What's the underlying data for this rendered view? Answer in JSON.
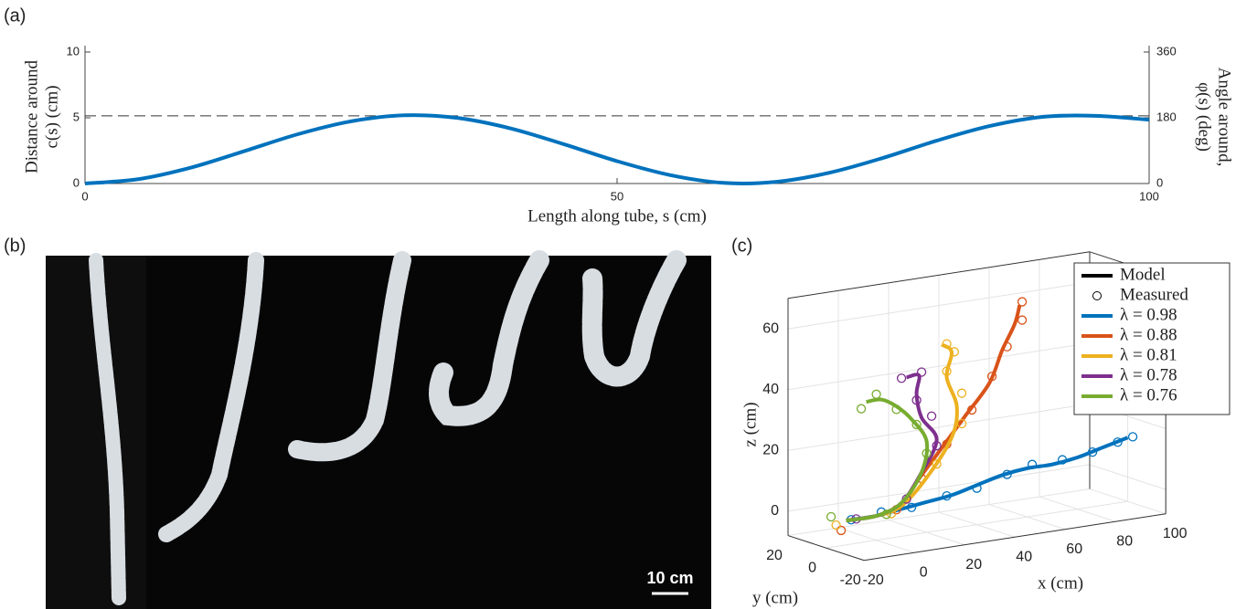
{
  "panel_labels": [
    "(a)",
    "(b)",
    "(c)"
  ],
  "photo": {
    "scale_bar_label": "10 cm"
  },
  "chart_data": [
    {
      "type": "line",
      "xlabel": "Length along tube, s (cm)",
      "ylabel": [
        "Distance around",
        "c(s) (cm)"
      ],
      "y2label": [
        "Angle around,",
        "φ(s) (deg)"
      ],
      "x": [
        0,
        5,
        10,
        15,
        20,
        25,
        30,
        35,
        40,
        45,
        50,
        55,
        60,
        65,
        70,
        75,
        80,
        85,
        90,
        95,
        100
      ],
      "values": [
        0,
        0.33,
        1.22,
        2.47,
        3.75,
        4.73,
        5.19,
        4.99,
        4.19,
        2.99,
        1.7,
        0.64,
        0.05,
        0.13,
        0.83,
        1.95,
        3.25,
        4.37,
        5.07,
        5.15,
        4.85
      ],
      "color": "#0072bd",
      "reference_line": 5.15,
      "xlim": [
        0,
        100
      ],
      "xticks": [
        0,
        50,
        100
      ],
      "ylim": [
        0,
        10
      ],
      "yticks": [
        0,
        5,
        10
      ],
      "y2lim": [
        0,
        360
      ],
      "y2ticks": [
        0,
        180,
        360
      ]
    },
    {
      "type": "line3d",
      "xlabel": "x (cm)",
      "ylabel": "y (cm)",
      "zlabel": "z (cm)",
      "xlim": [
        -20,
        100
      ],
      "xticks": [
        -20,
        0,
        20,
        40,
        60,
        80,
        100
      ],
      "ylim": [
        -20,
        20
      ],
      "yticks": [
        -20,
        0,
        20
      ],
      "zlim": [
        -8,
        70
      ],
      "zticks": [
        0,
        20,
        40,
        60
      ],
      "grid": true,
      "legend_styles": [
        "Model",
        "Measured"
      ],
      "series": [
        {
          "name": "λ = 0.98",
          "color": "#0072bd",
          "model": {
            "x": [
              -10,
              0,
              10,
              20,
              30,
              40,
              50,
              60,
              70,
              80,
              90,
              100
            ],
            "y": [
              0,
              0,
              0,
              0,
              0,
              0,
              0,
              0,
              0,
              0,
              0,
              0
            ],
            "z": [
              0,
              0,
              1,
              2,
              3,
              5,
              7,
              8,
              8,
              9,
              11,
              13
            ]
          },
          "measured": {
            "x": [
              -10,
              2,
              14,
              28,
              40,
              52,
              62,
              74,
              86,
              96,
              102
            ],
            "y": [
              0,
              0,
              0,
              0,
              0,
              0,
              0,
              0,
              0,
              0,
              0
            ],
            "z": [
              0,
              1,
              1,
              3,
              4,
              7,
              9,
              9,
              10,
              12,
              13
            ]
          }
        },
        {
          "name": "λ = 0.88",
          "color": "#d95319",
          "model": {
            "x": [
              -12,
              0,
              10,
              15,
              25,
              35,
              45,
              50,
              55,
              57
            ],
            "y": [
              0,
              0,
              0,
              0,
              0,
              0,
              0,
              0,
              0,
              0
            ],
            "z": [
              0,
              0,
              2,
              8,
              18,
              28,
              38,
              48,
              56,
              62
            ]
          },
          "measured": {
            "x": [
              -14,
              8,
              18,
              28,
              38,
              46,
              52,
              58,
              58
            ],
            "y": [
              0,
              0,
              0,
              0,
              0,
              0,
              0,
              0,
              0
            ],
            "z": [
              -3,
              1,
              10,
              20,
              30,
              40,
              49,
              57,
              63
            ]
          }
        },
        {
          "name": "λ = 0.81",
          "color": "#edb120",
          "model": {
            "x": [
              -12,
              0,
              10,
              20,
              30,
              32,
              28,
              30,
              26
            ],
            "y": [
              0,
              0,
              0,
              0,
              0,
              0,
              0,
              0,
              0
            ],
            "z": [
              0,
              0,
              2,
              10,
              22,
              32,
              42,
              50,
              53
            ]
          },
          "measured": {
            "x": [
              -16,
              6,
              24,
              34,
              34,
              28,
              31,
              28
            ],
            "y": [
              0,
              0,
              0,
              0,
              0,
              0,
              0,
              0
            ],
            "z": [
              -1,
              0,
              14,
              26,
              36,
              44,
              50,
              53
            ]
          }
        },
        {
          "name": "λ = 0.78",
          "color": "#7e2f8e",
          "model": {
            "x": [
              -12,
              0,
              10,
              18,
              24,
              18,
              16,
              17,
              12
            ],
            "y": [
              0,
              0,
              0,
              0,
              0,
              0,
              0,
              0,
              0
            ],
            "z": [
              0,
              0,
              3,
              12,
              22,
              30,
              38,
              44,
              44
            ]
          },
          "measured": {
            "x": [
              -8,
              12,
              24,
              22,
              16,
              18,
              10
            ],
            "y": [
              0,
              0,
              0,
              0,
              0,
              0,
              0
            ],
            "z": [
              0,
              4,
              20,
              30,
              36,
              45,
              44
            ]
          }
        },
        {
          "name": "λ = 0.76",
          "color": "#77ac30",
          "model": {
            "x": [
              -12,
              0,
              10,
              18,
              20,
              14,
              8,
              2,
              -4
            ],
            "y": [
              0,
              0,
              0,
              0,
              0,
              0,
              0,
              0,
              0
            ],
            "z": [
              0,
              0,
              3,
              12,
              22,
              30,
              35,
              38,
              38
            ]
          },
          "measured": {
            "x": [
              -18,
              4,
              20,
              16,
              8,
              0,
              -6
            ],
            "y": [
              0,
              0,
              0,
              0,
              0,
              0,
              0
            ],
            "z": [
              2,
              0,
              18,
              28,
              34,
              40,
              36
            ]
          }
        }
      ]
    }
  ]
}
